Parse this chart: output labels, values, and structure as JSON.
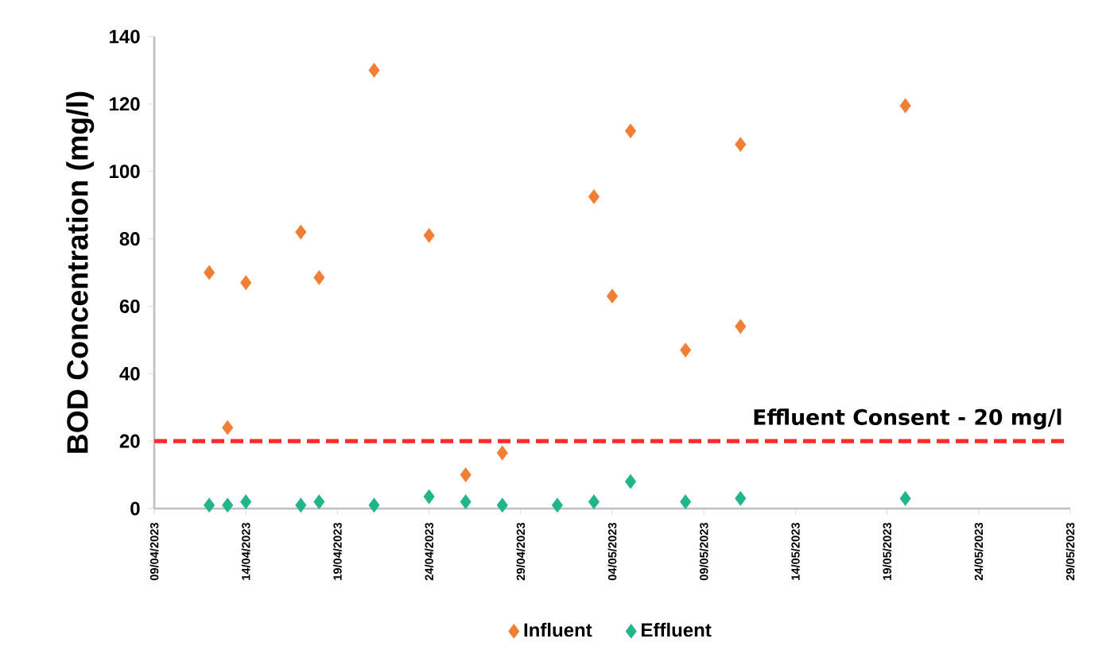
{
  "chart_data": {
    "type": "scatter",
    "ylabel": "BOD Concentration (mg/l)",
    "xlim": [
      "2023-04-09",
      "2023-05-29"
    ],
    "ylim": [
      0,
      140
    ],
    "xticks": [
      {
        "value": "2023-04-09",
        "label": "09/04/2023"
      },
      {
        "value": "2023-04-14",
        "label": "14/04/2023"
      },
      {
        "value": "2023-04-19",
        "label": "19/04/2023"
      },
      {
        "value": "2023-04-24",
        "label": "24/04/2023"
      },
      {
        "value": "2023-04-29",
        "label": "29/04/2023"
      },
      {
        "value": "2023-05-04",
        "label": "04/05/2023"
      },
      {
        "value": "2023-05-09",
        "label": "09/05/2023"
      },
      {
        "value": "2023-05-14",
        "label": "14/05/2023"
      },
      {
        "value": "2023-05-19",
        "label": "19/05/2023"
      },
      {
        "value": "2023-05-24",
        "label": "24/05/2023"
      },
      {
        "value": "2023-05-29",
        "label": "29/05/2023"
      }
    ],
    "yticks": [
      0,
      20,
      40,
      60,
      80,
      100,
      120,
      140
    ],
    "marker": "diamond",
    "grid": false,
    "legend": "bottom",
    "series": [
      {
        "name": "Influent",
        "color": "#f07f35",
        "x": [
          "2023-04-12",
          "2023-04-13",
          "2023-04-14",
          "2023-04-17",
          "2023-04-18",
          "2023-04-21",
          "2023-04-24",
          "2023-04-26",
          "2023-04-28",
          "2023-05-03",
          "2023-05-04",
          "2023-05-05",
          "2023-05-08",
          "2023-05-11",
          "2023-05-11",
          "2023-05-20"
        ],
        "values": [
          70,
          24,
          67,
          82,
          68.5,
          130,
          81,
          10,
          16.5,
          92.5,
          63,
          112,
          47,
          108,
          54,
          119.5
        ]
      },
      {
        "name": "Effluent",
        "color": "#22b58a",
        "x": [
          "2023-04-12",
          "2023-04-13",
          "2023-04-14",
          "2023-04-17",
          "2023-04-18",
          "2023-04-21",
          "2023-04-24",
          "2023-04-26",
          "2023-04-28",
          "2023-05-01",
          "2023-05-03",
          "2023-05-05",
          "2023-05-08",
          "2023-05-11",
          "2023-05-20"
        ],
        "values": [
          1,
          1,
          2,
          1,
          2,
          1,
          3.5,
          2,
          1,
          1,
          2,
          8,
          2,
          3,
          3
        ]
      }
    ],
    "ref_lines": [
      {
        "axis": "y",
        "value": 20,
        "label": "Effluent Consent - 20 mg/l",
        "color": "#ff2a2a",
        "line_style": "dashed"
      }
    ]
  }
}
